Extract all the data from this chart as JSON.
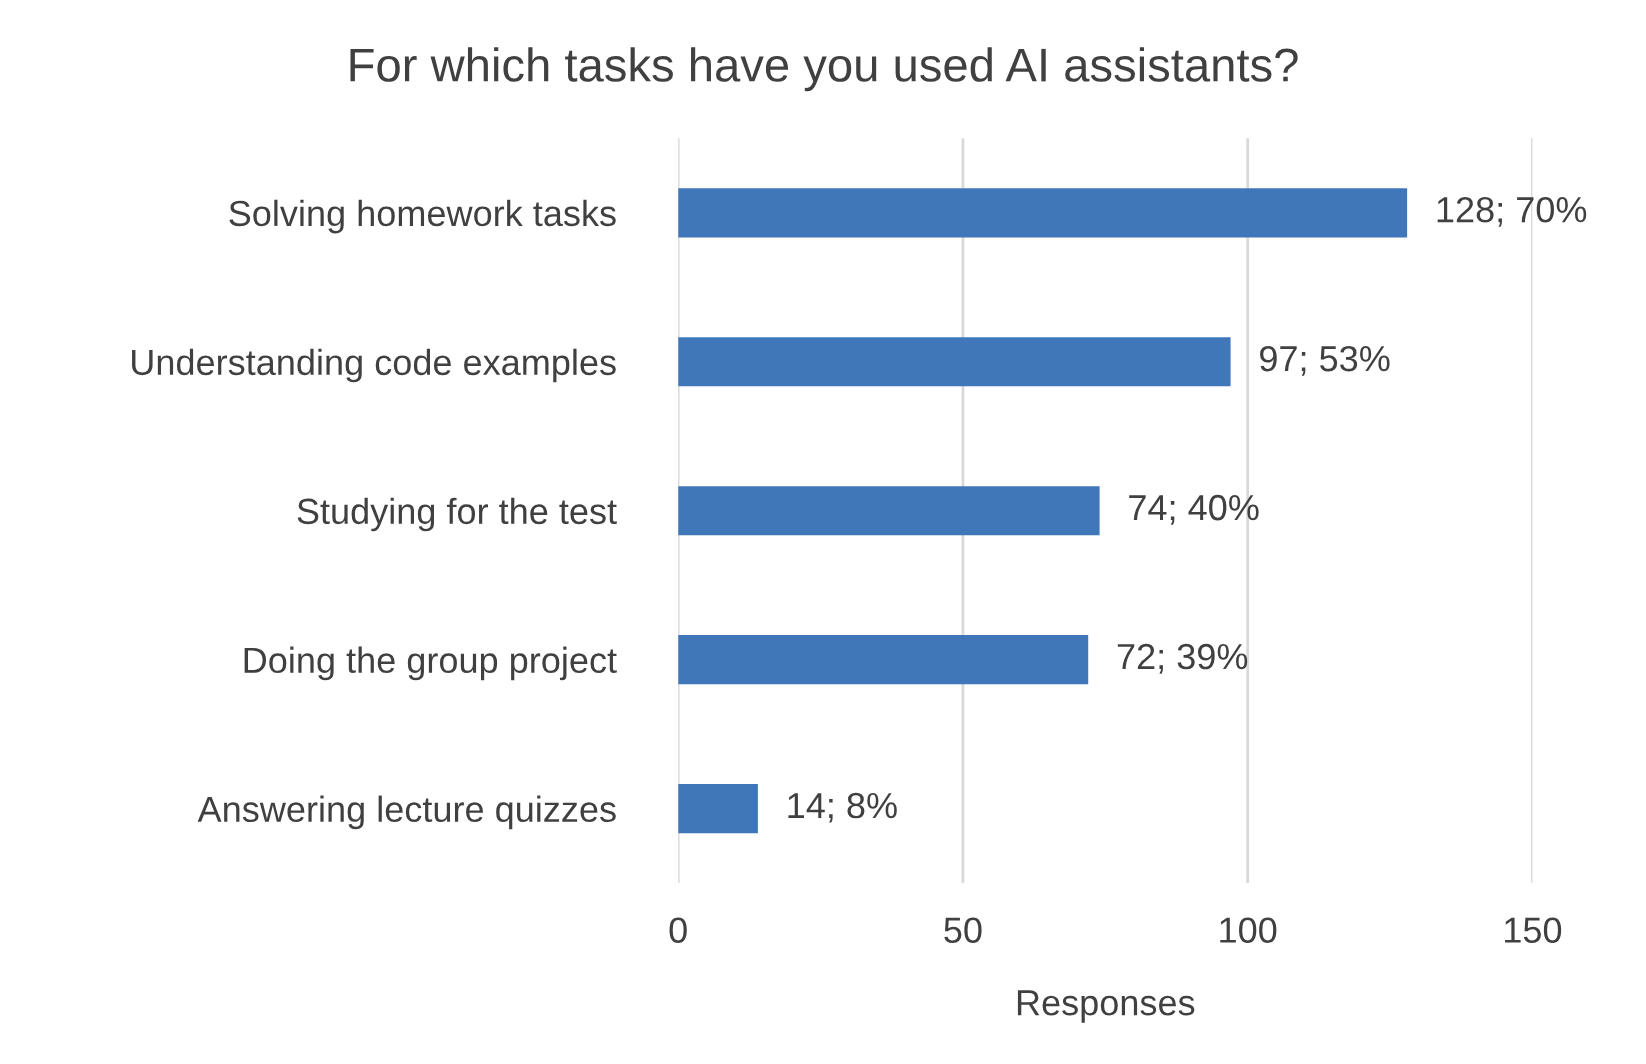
{
  "chart_data": {
    "type": "bar",
    "orientation": "horizontal",
    "title": "For which tasks have you used AI assistants?",
    "xlabel": "Responses",
    "categories": [
      "Solving homework tasks",
      "Understanding code examples",
      "Studying for the test",
      "Doing the group project",
      "Answering lecture quizzes"
    ],
    "values": [
      128,
      97,
      74,
      72,
      14
    ],
    "value_labels": [
      "128; 70%",
      "97; 53%",
      "74; 40%",
      "72; 39%",
      "14; 8%"
    ],
    "color": "#3f77b9",
    "xlim": [
      0,
      150
    ],
    "xticks": [
      0,
      50,
      100,
      150
    ],
    "grid": "x",
    "legend": false
  }
}
